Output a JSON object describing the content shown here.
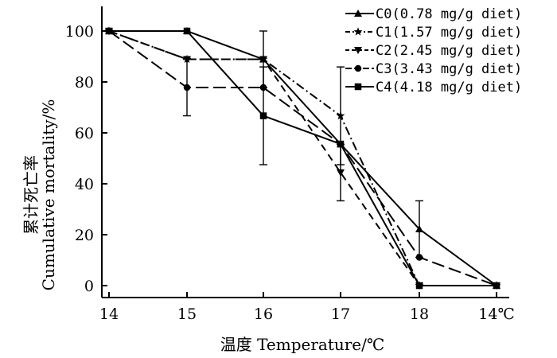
{
  "chart_data": {
    "type": "line",
    "x_tick_labels": [
      "14",
      "15",
      "16",
      "17",
      "18",
      "14℃"
    ],
    "y_ticks": [
      0,
      20,
      40,
      60,
      80,
      100
    ],
    "ylim": [
      0,
      100
    ],
    "xlabel": "温度 Temperature/℃",
    "ylabel_cn": "累计死亡率",
    "ylabel_en": "Cumulative mortality/%",
    "grid": false,
    "legend_position": "top-right",
    "series": [
      {
        "name": "C0(0.78 mg/g diet)",
        "marker": "triangle-up",
        "dash": "solid",
        "values": [
          100,
          100,
          88.9,
          55.6,
          22.2,
          0
        ],
        "errors": [
          0,
          0,
          0,
          0,
          11.1,
          0
        ]
      },
      {
        "name": "C1(1.57 mg/g diet)",
        "marker": "star",
        "dash": "dash-dot",
        "values": [
          100,
          88.9,
          88.9,
          66.7,
          0,
          0
        ],
        "errors": [
          0,
          0,
          11.1,
          19.2,
          0,
          0
        ]
      },
      {
        "name": "C2(2.45 mg/g diet)",
        "marker": "triangle-down",
        "dash": "dash",
        "values": [
          100,
          88.9,
          88.9,
          44.4,
          0,
          0
        ],
        "errors": [
          0,
          0,
          0,
          11.1,
          0,
          0
        ]
      },
      {
        "name": "C3(3.43 mg/g diet)",
        "marker": "circle",
        "dash": "long-dash",
        "values": [
          100,
          77.8,
          77.8,
          55.6,
          11.1,
          0
        ],
        "errors": [
          0,
          11.1,
          0,
          0,
          0,
          0
        ]
      },
      {
        "name": "C4(4.18 mg/g diet)",
        "marker": "square",
        "dash": "solid",
        "values": [
          100,
          100,
          66.7,
          55.6,
          0,
          0
        ],
        "errors": [
          0,
          0,
          19.2,
          0,
          0,
          0
        ]
      }
    ]
  }
}
